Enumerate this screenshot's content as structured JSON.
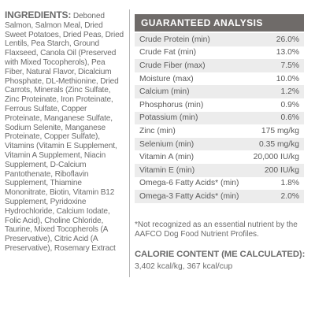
{
  "ingredients": {
    "title": "INGREDIENTS:",
    "text": "Deboned Salmon, Salmon Meal, Dried Sweet Potatoes, Dried Peas, Dried Lentils, Pea Starch, Ground Flaxseed, Canola Oil (Preserved with Mixed Tocopherols), Pea Fiber, Natural Flavor, Dicalcium Phosphate, DL-Methionine, Dried Carrots, Minerals (Zinc Sulfate, Zinc Proteinate, Iron Proteinate, Ferrous Sulfate, Copper Proteinate, Manganese Sulfate, Sodium Selenite, Manganese Proteinate, Copper Sulfate), Vitamins (Vitamin E Supplement, Vitamin A Supplement, Niacin Supplement, D-Calcium Pantothenate, Riboflavin Supplement, Thiamine Mononitrate, Biotin, Vitamin B12 Supplement, Pyridoxine Hydrochloride, Calcium Iodate, Folic Acid), Choline Chloride, Taurine, Mixed Tocopherols (A Preservative), Citric Acid (A Preservative), Rosemary Extract"
  },
  "analysis": {
    "title": "GUARANTEED ANALYSIS",
    "rows": [
      {
        "label": "Crude Protein (min)",
        "value": "26.0%"
      },
      {
        "label": "Crude Fat (min)",
        "value": "13.0%"
      },
      {
        "label": "Crude Fiber (max)",
        "value": "7.5%"
      },
      {
        "label": "Moisture (max)",
        "value": "10.0%"
      },
      {
        "label": "Calcium (min)",
        "value": "1.2%"
      },
      {
        "label": "Phosphorus (min)",
        "value": "0.9%"
      },
      {
        "label": "Potassium (min)",
        "value": "0.6%"
      },
      {
        "label": "Zinc (min)",
        "value": "175 mg/kg"
      },
      {
        "label": "Selenium (min)",
        "value": "0.35 mg/kg"
      },
      {
        "label": "Vitamin A (min)",
        "value": "20,000 IU/kg"
      },
      {
        "label": "Vitamin E (min)",
        "value": "200 IU/kg"
      },
      {
        "label": "Omega-6 Fatty Acids* (min)",
        "value": "1.8%"
      },
      {
        "label": "Omega-3 Fatty Acids* (min)",
        "value": "2.0%"
      }
    ],
    "footnote": "*Not recognized as an essential nutrient by the AAFCO Dog Food Nutrient Profiles."
  },
  "calorie": {
    "title": "CALORIE CONTENT (ME CALCULATED):",
    "value": "3,402 kcal/kg, 367 kcal/cup"
  },
  "colors": {
    "header_bg": "#6f6b69",
    "row_shade": "#ececec",
    "text": "#6b6b6b"
  }
}
